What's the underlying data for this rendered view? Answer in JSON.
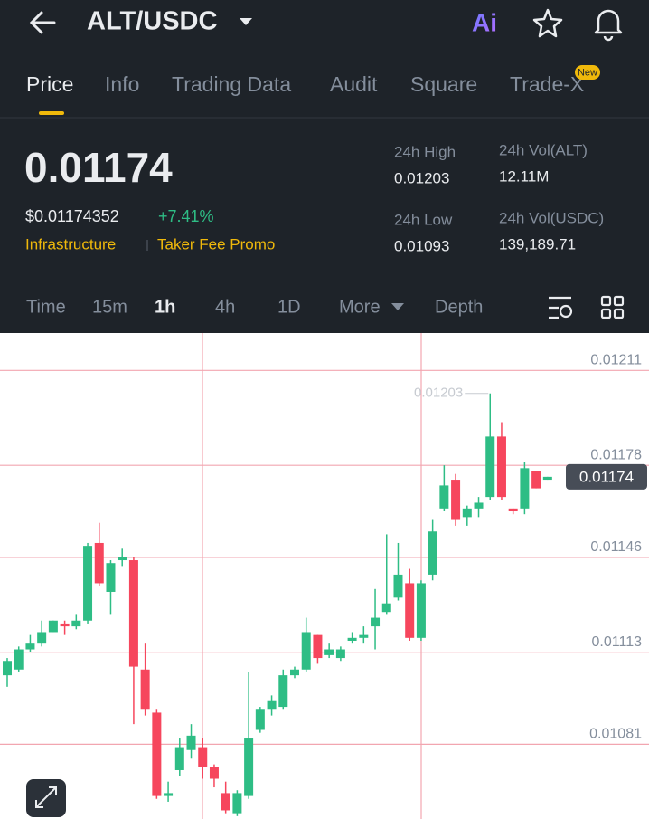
{
  "header": {
    "pair": "ALT/USDC",
    "ai": "Ai"
  },
  "tabs": [
    "Price",
    "Info",
    "Trading Data",
    "Audit",
    "Square",
    "Trade-X"
  ],
  "new_badge": "New",
  "price": "0.01174",
  "usd_price": "$0.01174352",
  "change": "+7.41%",
  "tags": [
    "Infrastructure",
    "Taker Fee Promo"
  ],
  "stats": [
    {
      "label": "24h High",
      "value": "0.01203"
    },
    {
      "label": "24h Vol(ALT)",
      "value": "12.11M"
    },
    {
      "label": "24h Low",
      "value": "0.01093"
    },
    {
      "label": "24h Vol(USDC)",
      "value": "139,189.71"
    }
  ],
  "intervals": [
    "Time",
    "15m",
    "1h",
    "4h",
    "1D",
    "More",
    "Depth"
  ],
  "chart_data": {
    "type": "candlestick",
    "categories": [
      null,
      null,
      null,
      null,
      null,
      null,
      null,
      null,
      null,
      null,
      null,
      null,
      null,
      null,
      null,
      null,
      null,
      null,
      null,
      null,
      null,
      null,
      null,
      null,
      null,
      null,
      null,
      null,
      null,
      null,
      null,
      null,
      null,
      null,
      null,
      null,
      null,
      null,
      null,
      null,
      null,
      null,
      null,
      null,
      null,
      null,
      null,
      null
    ],
    "open": [
      0.01105,
      0.01107,
      0.01114,
      0.01116,
      0.0112,
      0.01123,
      0.01122,
      0.01124,
      0.01151,
      0.01134,
      0.01145,
      0.01145,
      0.01107,
      0.01092,
      0.01063,
      0.01072,
      0.01079,
      0.0108,
      0.01073,
      0.01064,
      0.01057,
      0.01063,
      0.01086,
      0.01093,
      0.01094,
      0.01105,
      0.01107,
      0.01119,
      0.01112,
      0.01111,
      0.01117,
      0.01118,
      0.01122,
      0.01127,
      0.01132,
      0.01137,
      0.01118,
      0.0114,
      0.01163,
      0.01173,
      0.0116,
      0.01163,
      0.01167,
      0.01188,
      0.01163,
      0.01163,
      0.01176,
      0.01173
    ],
    "high": [
      0.01111,
      0.01115,
      0.01119,
      0.01124,
      0.01124,
      0.01124,
      0.01126,
      0.01151,
      0.01158,
      0.01145,
      0.01149,
      0.01146,
      0.01116,
      0.01093,
      0.01068,
      0.01083,
      0.01088,
      0.01083,
      0.01074,
      0.01068,
      0.01065,
      0.01106,
      0.01094,
      0.01098,
      0.01107,
      0.01108,
      0.01125,
      0.01119,
      0.01116,
      0.01115,
      0.0112,
      0.01122,
      0.01135,
      0.01154,
      0.01151,
      0.01142,
      0.01138,
      0.01159,
      0.01178,
      0.01175,
      0.01164,
      0.01167,
      0.01203,
      0.01193,
      0.01163,
      0.01179,
      0.01176,
      0.01174
    ],
    "low": [
      0.01101,
      0.01106,
      0.01113,
      0.01115,
      0.0112,
      0.01119,
      0.01121,
      0.01123,
      0.01136,
      0.01126,
      0.01143,
      0.01088,
      0.01091,
      0.01062,
      0.01061,
      0.0107,
      0.01076,
      0.01069,
      0.01066,
      0.01057,
      0.01056,
      0.01062,
      0.01085,
      0.01091,
      0.01093,
      0.01104,
      0.01106,
      0.01109,
      0.01111,
      0.0111,
      0.01116,
      0.01116,
      0.01114,
      0.01126,
      0.01131,
      0.01117,
      0.01117,
      0.01138,
      0.01162,
      0.01157,
      0.01157,
      0.0116,
      0.01166,
      0.01166,
      0.01161,
      0.01161,
      0.0117,
      0.01173
    ],
    "close": [
      0.0111,
      0.01114,
      0.01116,
      0.0112,
      0.01124,
      0.01122,
      0.01124,
      0.0115,
      0.01137,
      0.01144,
      0.01146,
      0.01108,
      0.01093,
      0.01063,
      0.01064,
      0.0108,
      0.01084,
      0.01073,
      0.01069,
      0.01058,
      0.01064,
      0.01083,
      0.01093,
      0.01096,
      0.01105,
      0.01107,
      0.0112,
      0.01111,
      0.01114,
      0.01114,
      0.01118,
      0.01119,
      0.01125,
      0.0113,
      0.0114,
      0.01118,
      0.01137,
      0.01155,
      0.01171,
      0.01159,
      0.01163,
      0.01165,
      0.01188,
      0.01167,
      0.01162,
      0.01177,
      0.0117,
      0.01174
    ],
    "ylim": [
      0.01055,
      0.01224
    ],
    "yticks": [
      0.01211,
      0.01178,
      0.01146,
      0.01113,
      0.01081
    ],
    "grid": true,
    "grid_color": "#f2a6b0",
    "up_color": "#2ebd85",
    "down_color": "#f6465d",
    "high_label": 0.01203,
    "last_price": 0.01174
  }
}
